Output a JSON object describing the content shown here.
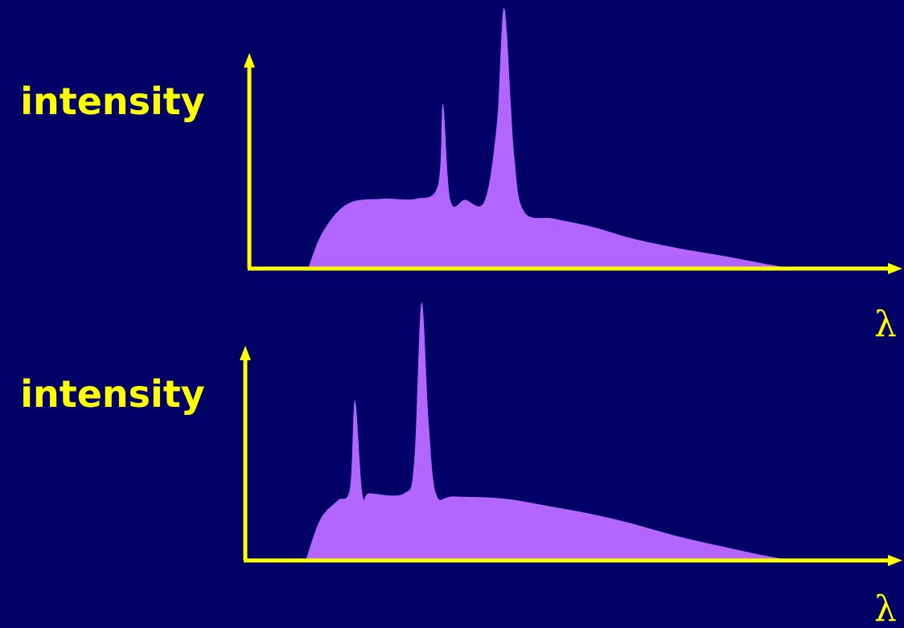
{
  "colors": {
    "background": "#000066",
    "axis": "#FFFF00",
    "label": "#FFFF00",
    "fill": "#B266FF"
  },
  "chart_data": [
    {
      "type": "area",
      "ylabel": "intensity",
      "xlabel": "λ",
      "x": [
        0,
        0.03,
        0.08,
        0.15,
        0.22,
        0.265,
        0.275,
        0.29,
        0.32,
        0.36,
        0.385,
        0.4,
        0.42,
        0.44,
        0.5,
        0.58,
        0.66,
        0.75,
        0.86,
        0.95,
        1.0
      ],
      "values": [
        0,
        0.35,
        0.62,
        0.67,
        0.67,
        0.8,
        1.58,
        0.66,
        0.66,
        0.65,
        1.4,
        2.5,
        1.1,
        0.55,
        0.48,
        0.4,
        0.29,
        0.2,
        0.11,
        0.03,
        0
      ],
      "ylim": [
        0,
        2.5
      ],
      "grid": false
    },
    {
      "type": "area",
      "ylabel": "intensity",
      "xlabel": "λ",
      "x": [
        0,
        0.03,
        0.065,
        0.09,
        0.1,
        0.115,
        0.13,
        0.2,
        0.22,
        0.235,
        0.25,
        0.265,
        0.3,
        0.4,
        0.5,
        0.58,
        0.66,
        0.75,
        0.86,
        0.95,
        1.0
      ],
      "values": [
        0,
        0.4,
        0.58,
        0.7,
        1.55,
        0.65,
        0.65,
        0.65,
        0.95,
        2.5,
        1.3,
        0.64,
        0.62,
        0.6,
        0.52,
        0.45,
        0.36,
        0.24,
        0.12,
        0.03,
        0
      ],
      "ylim": [
        0,
        2.5
      ],
      "grid": false
    }
  ]
}
